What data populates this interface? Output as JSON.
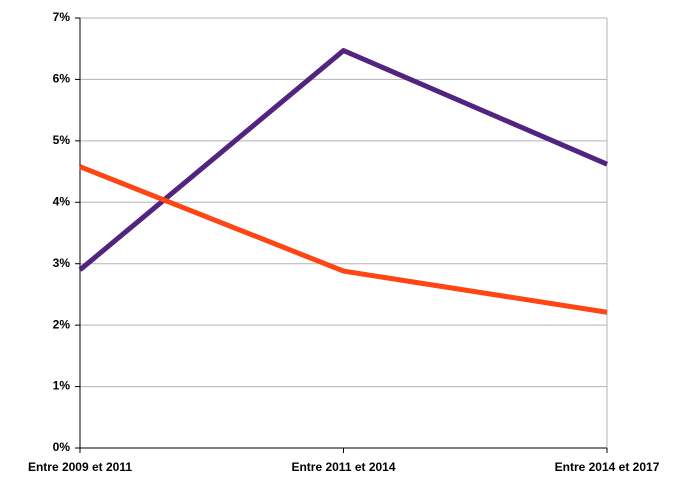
{
  "chart_data": {
    "type": "line",
    "categories": [
      "Entre 2009 et 2011",
      "Entre 2011 et 2014",
      "Entre 2014 et 2017"
    ],
    "series": [
      {
        "color": "#52237f",
        "values": [
          2.9,
          6.47,
          4.62
        ]
      },
      {
        "color": "#ff4514",
        "values": [
          4.58,
          2.88,
          2.21
        ]
      }
    ],
    "ylim": [
      0,
      7
    ],
    "yticks": [
      {
        "value": 0,
        "label": "0%"
      },
      {
        "value": 1,
        "label": "1%"
      },
      {
        "value": 2,
        "label": "2%"
      },
      {
        "value": 3,
        "label": "3%"
      },
      {
        "value": 4,
        "label": "4%"
      },
      {
        "value": 5,
        "label": "5%"
      },
      {
        "value": 6,
        "label": "6%"
      },
      {
        "value": 7,
        "label": "7%"
      }
    ],
    "grid": true
  }
}
